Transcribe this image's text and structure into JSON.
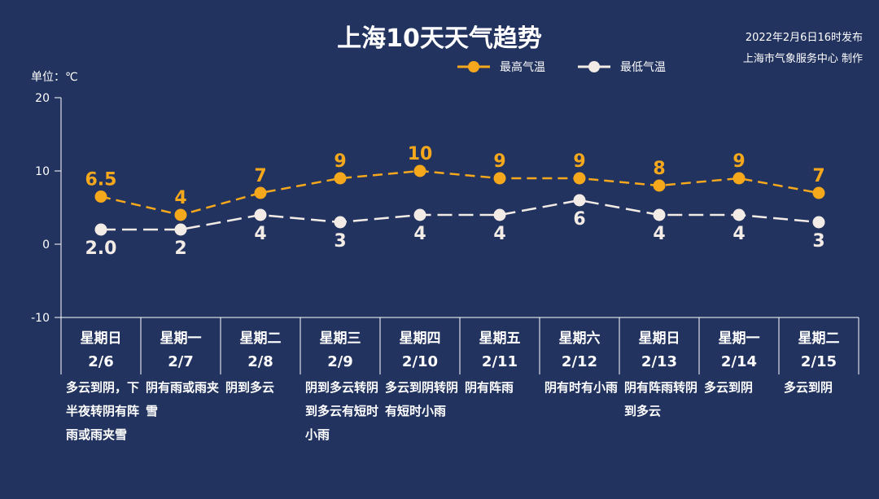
{
  "header": {
    "title": "上海10天天气趋势",
    "publish_time": "2022年2月6日16时发布",
    "publisher": "上海市气象服务中心 制作",
    "unit": "单位：℃"
  },
  "chart_data": {
    "type": "line",
    "title": "上海10天天气趋势",
    "ylabel": "单位：℃",
    "ylim": [
      -10,
      20
    ],
    "yticks": [
      20,
      10,
      0,
      -10
    ],
    "legend_position": "top-right",
    "categories": [
      "2/6",
      "2/7",
      "2/8",
      "2/9",
      "2/10",
      "2/11",
      "2/12",
      "2/13",
      "2/14",
      "2/15"
    ],
    "weekdays": [
      "星期日",
      "星期一",
      "星期二",
      "星期三",
      "星期四",
      "星期五",
      "星期六",
      "星期日",
      "星期一",
      "星期二"
    ],
    "series": [
      {
        "name": "最高气温",
        "color": "#f5a81c",
        "values": [
          6.5,
          4,
          7,
          9,
          10,
          9,
          9,
          8,
          9,
          7
        ],
        "labels": [
          "6.5",
          "4",
          "7",
          "9",
          "10",
          "9",
          "9",
          "8",
          "9",
          "7"
        ]
      },
      {
        "name": "最低气温",
        "color": "#f3ece6",
        "values": [
          2,
          2,
          4,
          3,
          4,
          4,
          6,
          4,
          4,
          3
        ],
        "labels": [
          "2.0",
          "2",
          "4",
          "3",
          "4",
          "4",
          "6",
          "4",
          "4",
          "3"
        ]
      }
    ],
    "descriptions": [
      "多云到阴，下半夜转阴有阵雨或雨夹雪",
      "阴有雨或雨夹雪",
      "阴到多云",
      "阴到多云转阴到多云有短时小雨",
      "多云到阴转阴有短时小雨",
      "阴有阵雨",
      "阴有时有小雨",
      "阴有阵雨转阴到多云",
      "多云到阴",
      "多云到阴"
    ]
  }
}
